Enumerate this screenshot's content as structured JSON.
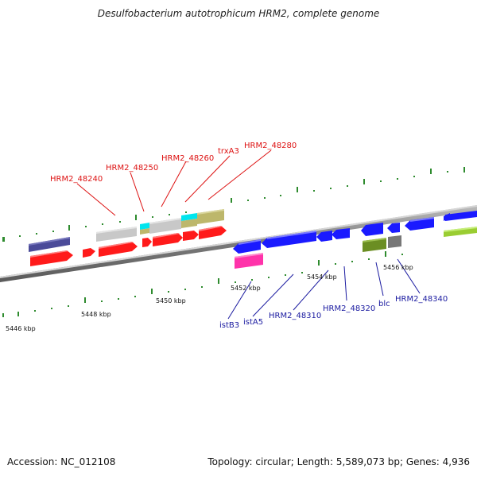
{
  "title": "Desulfobacterium autotrophicum HRM2, complete genome",
  "footer": {
    "accession": "Accession: NC_012108",
    "summary": "Topology: circular; Length: 5,589,073 bp; Genes: 4,936"
  },
  "scale_labels": [
    "5446 kbp",
    "5448 kbp",
    "5450 kbp",
    "5452 kbp",
    "5454 kbp",
    "5456 kbp"
  ],
  "forward_gene_labels": [
    "HRM2_48240",
    "HRM2_48250",
    "HRM2_48260",
    "trxA3",
    "HRM2_48280"
  ],
  "reverse_gene_labels": [
    "istB3",
    "istA5",
    "HRM2_48310",
    "HRM2_48320",
    "blc",
    "HRM2_48340"
  ],
  "colors": {
    "forward_cds": "#ff1a1a",
    "reverse_cds": "#1a1aff",
    "backbone": "#8c8c8c",
    "tick": "#2e8b2e",
    "forward_label": "#dd1111",
    "reverse_label": "#1a1aa0",
    "gray_feature": "#c8c8c8",
    "cyan_feature": "#00e5ee",
    "khaki_feature": "#bdb76b",
    "navy_feature": "#4b4b99",
    "magenta_feature": "#ff33aa",
    "olive_feature": "#6b8e23",
    "dark_gray_feature": "#777777",
    "lime_feature": "#9acd32"
  }
}
